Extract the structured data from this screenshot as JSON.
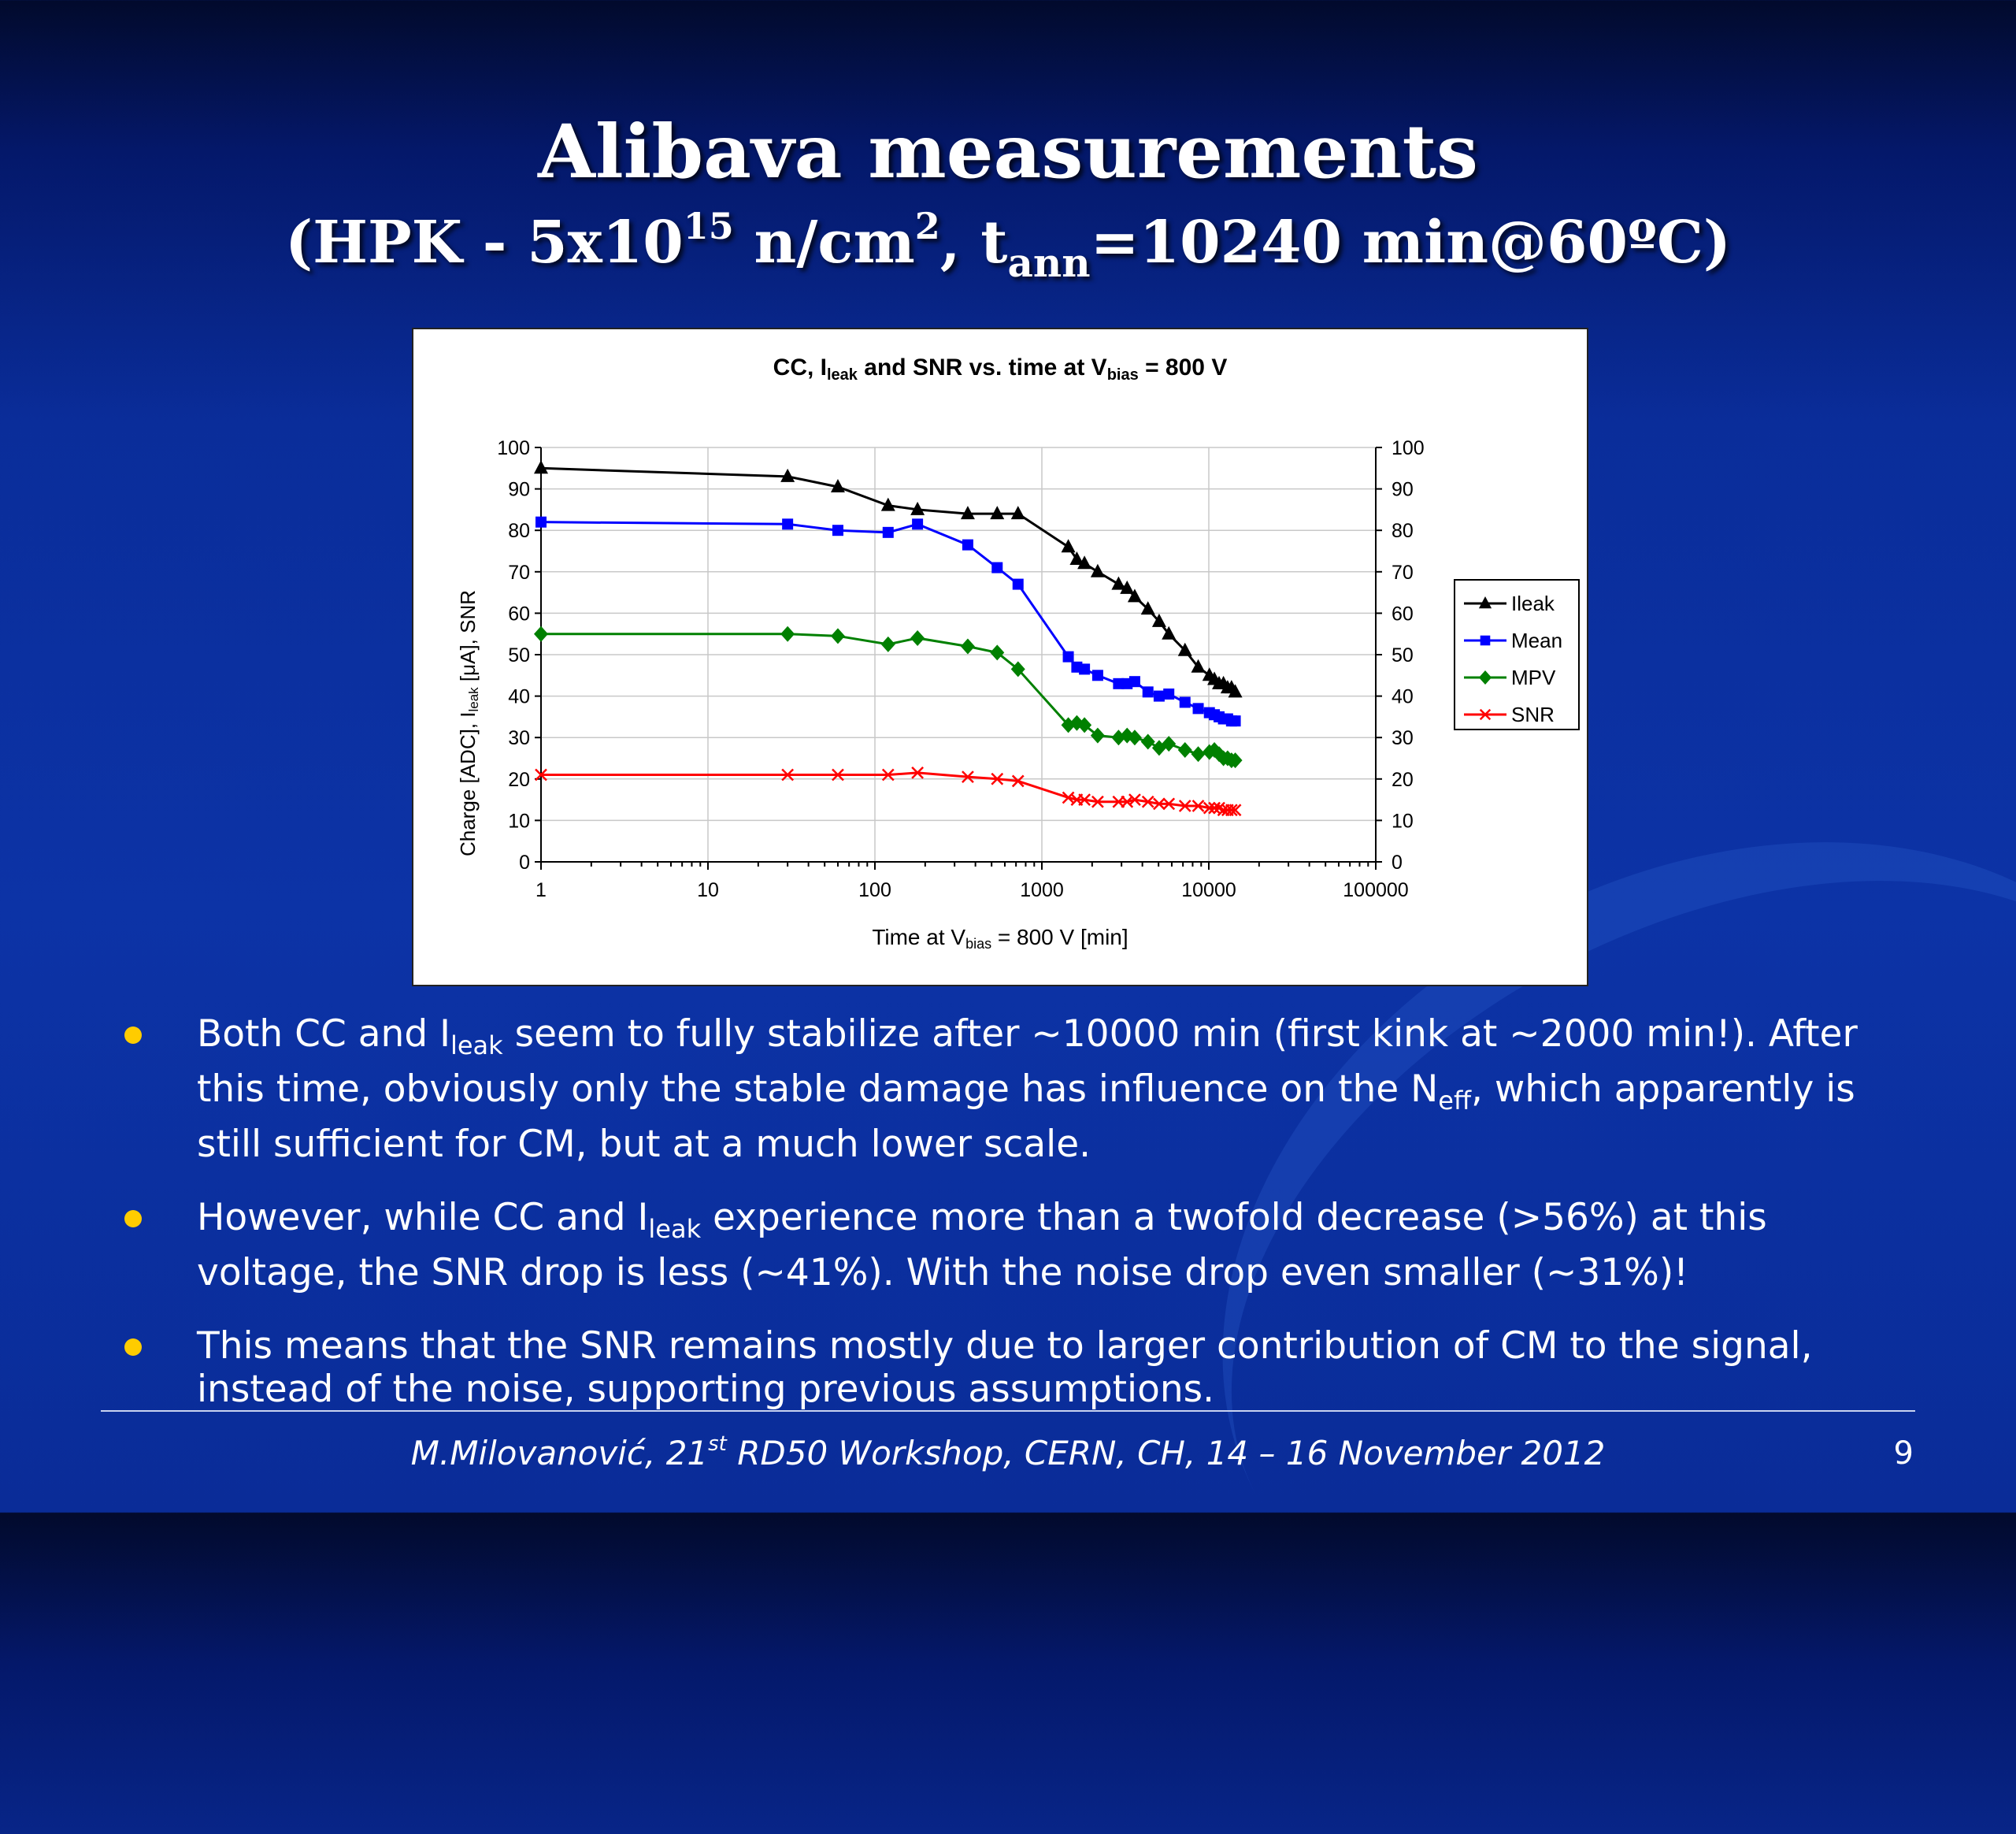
{
  "slide": {
    "title": "Alibava measurements",
    "subtitle": {
      "a": "(HPK - 5x10",
      "a_sup": "15",
      "b": " n/cm",
      "b_sup": "2",
      "c": ", t",
      "c_sub": "ann",
      "d": "=10240 min@60ºC)"
    },
    "page_number": "9"
  },
  "chart_labels": {
    "title_a": "CC, I",
    "title_sub1": "leak",
    "title_b": " and SNR vs. time at V",
    "title_sub2": "bias",
    "title_c": " = 800 V",
    "xlabel_a": "Time at V",
    "xlabel_sub": "bias",
    "xlabel_b": " = 800 V [min]",
    "ylabel_a": "Charge [ADC], I",
    "ylabel_sub": "leak",
    "ylabel_b": " [μA], SNR"
  },
  "chart_data": {
    "type": "line",
    "x_scale": "log",
    "xlim": [
      1,
      100000
    ],
    "ylim": [
      0,
      100
    ],
    "y_ticks": [
      "0",
      "10",
      "20",
      "30",
      "40",
      "50",
      "60",
      "70",
      "80",
      "90",
      "100"
    ],
    "x_ticks": [
      "1",
      "10",
      "100",
      "1000",
      "10000",
      "100000"
    ],
    "grid": true,
    "legend_position": "right",
    "x": [
      1,
      30,
      60,
      120,
      180,
      360,
      540,
      720,
      1440,
      1620,
      1800,
      2160,
      2880,
      3240,
      3600,
      4320,
      5040,
      5760,
      7200,
      8640,
      10080,
      10800,
      11520,
      12240,
      12960,
      13680,
      14400
    ],
    "series": [
      {
        "name": "Ileak",
        "color": "#000000",
        "marker": "triangle",
        "values": [
          95,
          93,
          90.5,
          86,
          85,
          84,
          84,
          84,
          76,
          73,
          72,
          70,
          67,
          66,
          64,
          61,
          58,
          55,
          51,
          47,
          45,
          44,
          43,
          43,
          42,
          42,
          41
        ]
      },
      {
        "name": "Mean",
        "color": "#0000ff",
        "marker": "square",
        "values": [
          82,
          81.5,
          80,
          79.5,
          81.5,
          76.5,
          71,
          67,
          49.5,
          47,
          46.5,
          45,
          43,
          43,
          43.5,
          41,
          40,
          40.5,
          38.5,
          37,
          36,
          35.5,
          35,
          34.5,
          34.5,
          34,
          34
        ]
      },
      {
        "name": "MPV",
        "color": "#008000",
        "marker": "diamond",
        "values": [
          55,
          55,
          54.5,
          52.5,
          54,
          52,
          50.5,
          46.5,
          33,
          33.5,
          33,
          30.5,
          30,
          30.5,
          30,
          29,
          27.5,
          28.5,
          27,
          26,
          26.5,
          27,
          26,
          25,
          25,
          24.5,
          24.5
        ]
      },
      {
        "name": "SNR",
        "color": "#ff0000",
        "marker": "x",
        "values": [
          21,
          21,
          21,
          21,
          21.5,
          20.5,
          20,
          19.5,
          15.5,
          15,
          15,
          14.5,
          14.5,
          14.5,
          15,
          14.5,
          14,
          14,
          13.5,
          13.5,
          13,
          13,
          13,
          12.5,
          12.5,
          12.5,
          12.5
        ]
      }
    ]
  },
  "bullets": {
    "b1_a": "Both CC and I",
    "b1_sub1": "leak",
    "b1_b": " seem to fully stabilize after ~10000 min (first kink at ~2000 min!). After this time, obviously only the stable damage has influence on the N",
    "b1_sub2": "eff",
    "b1_c": ", which apparently is still sufficient for CM, but at a much lower scale.",
    "b2_a": "However, while CC and I",
    "b2_sub": "leak",
    "b2_b": " experience more than a twofold decrease (>56%) at this voltage, the SNR drop is less (~41%). With the noise drop even smaller (~31%)!",
    "b3": "This means that the SNR remains mostly due to larger contribution of CM to the signal, instead of the noise, supporting previous assumptions."
  },
  "footer": {
    "a": "M.Milovanović, 21",
    "sup": "st",
    "b": " RD50 Workshop, CERN, CH, 14 – 16 November 2012"
  }
}
